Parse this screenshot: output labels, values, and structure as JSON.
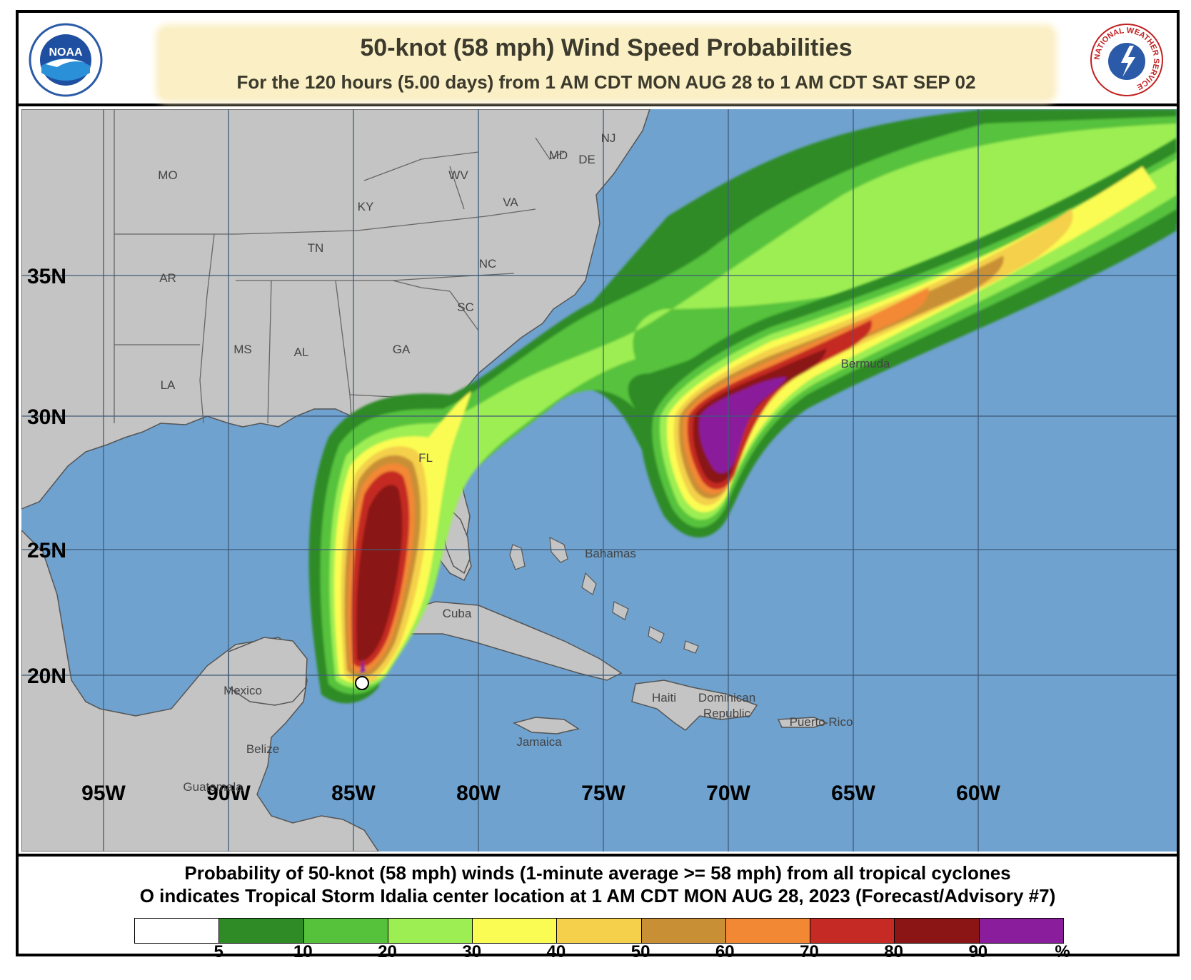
{
  "header": {
    "title": "50-knot (58 mph) Wind Speed Probabilities",
    "subtitle": "For the 120 hours (5.00 days) from 1 AM CDT MON AUG 28 to 1 AM CDT SAT SEP 02",
    "left_logo_text": "NOAA",
    "right_logo_text": "NATIONAL WEATHER SERVICE"
  },
  "map": {
    "lat_labels": [
      "35N",
      "30N",
      "25N",
      "20N"
    ],
    "lon_labels": [
      "95W",
      "90W",
      "85W",
      "80W",
      "75W",
      "70W",
      "65W",
      "60W"
    ],
    "state_labels": [
      "MO",
      "KY",
      "WV",
      "VA",
      "MD",
      "DE",
      "NJ",
      "TN",
      "NC",
      "AR",
      "SC",
      "MS",
      "AL",
      "GA",
      "LA",
      "FL"
    ],
    "place_labels": [
      "Bermuda",
      "Bahamas",
      "Cuba",
      "Mexico",
      "Haiti",
      "Dominican",
      "Republic",
      "Puerto Rico",
      "Jamaica",
      "Belize",
      "Guatemala"
    ],
    "storm_marker_icon": "open-circle-icon",
    "colors": {
      "ocean": "#6fa2cf",
      "land": "#c4c4c4",
      "border": "#555555",
      "grid": "#5a6f86"
    }
  },
  "footer": {
    "caption_line1": "Probability of 50-knot (58 mph) winds (1-minute average >= 58 mph) from all tropical cyclones",
    "caption_line2": "O  indicates Tropical Storm Idalia center location at 1 AM CDT MON AUG 28, 2023 (Forecast/Advisory #7)",
    "legend_colors": [
      "#ffffff",
      "#2e8b25",
      "#56c23c",
      "#9cee52",
      "#fbfc53",
      "#f4d04b",
      "#c98f35",
      "#f38834",
      "#c52a24",
      "#8b1515",
      "#8a1d9b"
    ],
    "legend_ticks": [
      "5",
      "10",
      "20",
      "30",
      "40",
      "50",
      "60",
      "70",
      "80",
      "90",
      "%"
    ]
  }
}
